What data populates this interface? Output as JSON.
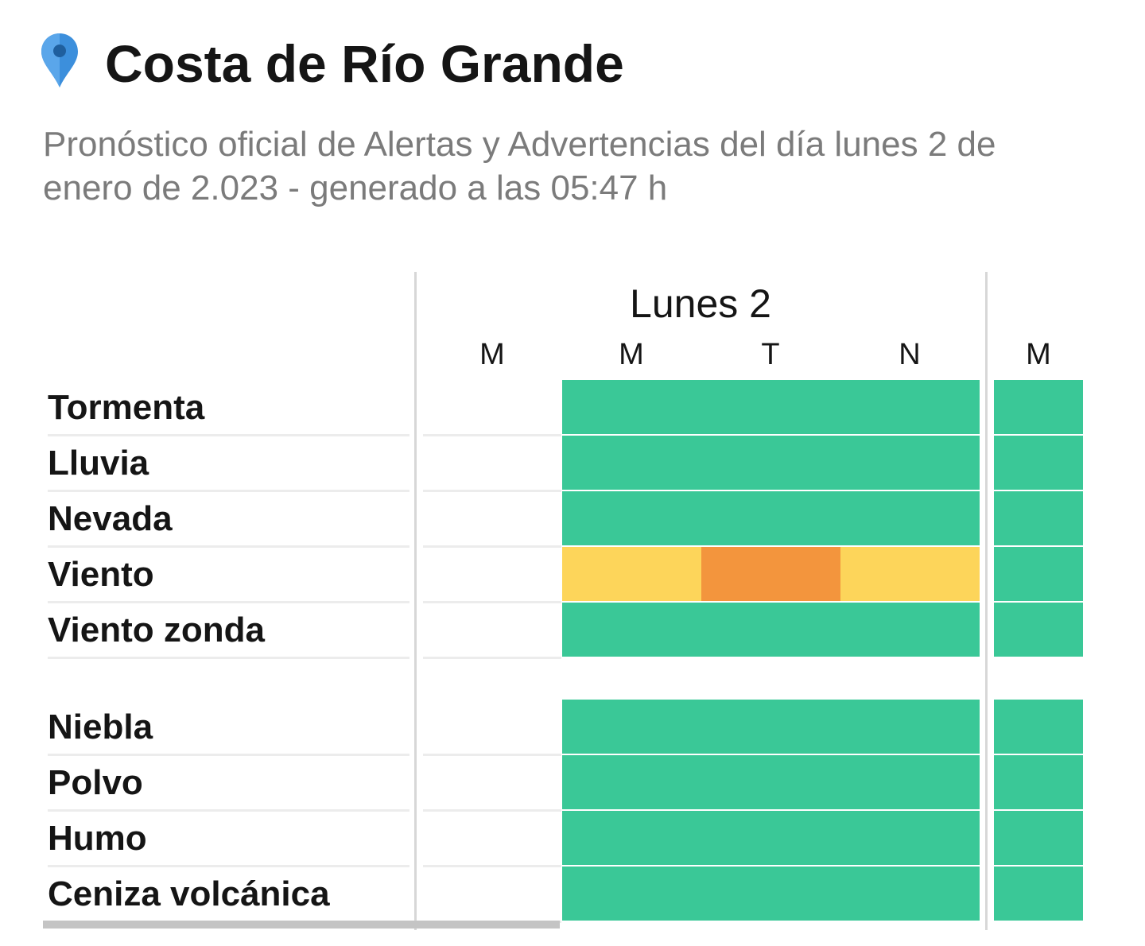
{
  "header": {
    "title": "Costa de Río Grande",
    "subtitle": "Pronóstico oficial de Alertas y Advertencias del día lunes 2 de enero de 2.023 - generado a las 05:47 h",
    "pin_icon": "map-pin-icon"
  },
  "colors": {
    "green": "#3AC897",
    "yellow": "#FDD55A",
    "orange": "#F3953D"
  },
  "table": {
    "day_title": "Lunes 2",
    "periods": [
      "M",
      "M",
      "T",
      "N",
      "M"
    ],
    "groups": [
      {
        "rows": [
          {
            "label": "Tormenta",
            "levels": [
              null,
              "green",
              "green",
              "green",
              "green"
            ]
          },
          {
            "label": "Lluvia",
            "levels": [
              null,
              "green",
              "green",
              "green",
              "green"
            ]
          },
          {
            "label": "Nevada",
            "levels": [
              null,
              "green",
              "green",
              "green",
              "green"
            ]
          },
          {
            "label": "Viento",
            "levels": [
              null,
              "yellow",
              "orange",
              "yellow",
              "green"
            ]
          },
          {
            "label": "Viento zonda",
            "levels": [
              null,
              "green",
              "green",
              "green",
              "green"
            ]
          }
        ]
      },
      {
        "rows": [
          {
            "label": "Niebla",
            "levels": [
              null,
              "green",
              "green",
              "green",
              "green"
            ]
          },
          {
            "label": "Polvo",
            "levels": [
              null,
              "green",
              "green",
              "green",
              "green"
            ]
          },
          {
            "label": "Humo",
            "levels": [
              null,
              "green",
              "green",
              "green",
              "green"
            ]
          },
          {
            "label": "Ceniza volcánica",
            "levels": [
              null,
              "green",
              "green",
              "green",
              "green"
            ]
          }
        ]
      }
    ]
  }
}
